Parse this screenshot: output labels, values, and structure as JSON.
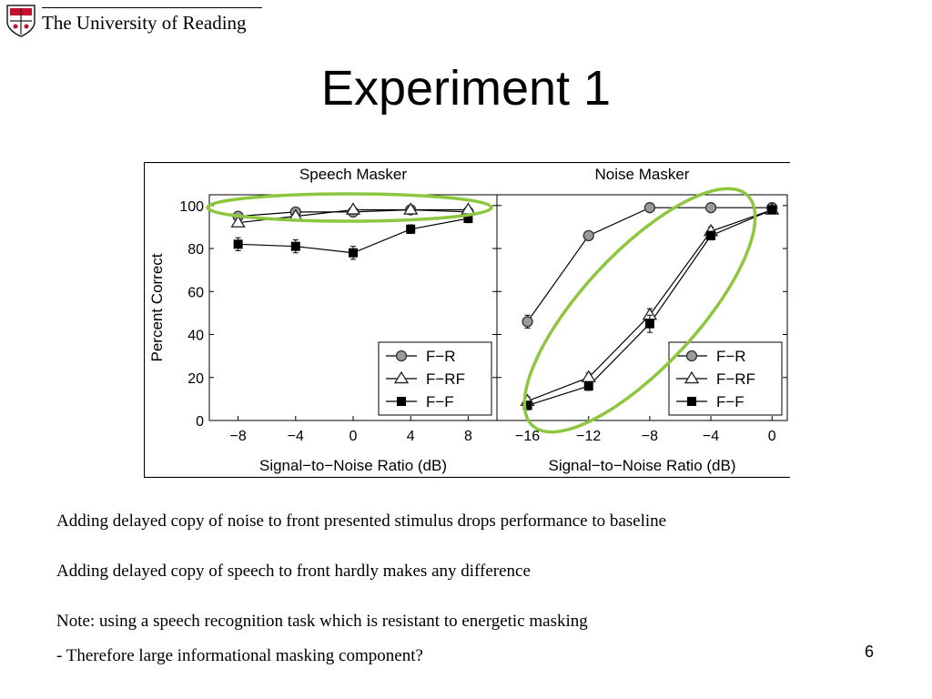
{
  "header": {
    "logo_text": "The University of Reading"
  },
  "slide": {
    "title": "Experiment 1",
    "page_number": "6",
    "bullets": [
      "Adding delayed copy of noise to front presented stimulus drops performance to baseline",
      "Adding delayed copy of speech to front hardly makes any difference",
      "Note: using a speech recognition task which is resistant to energetic masking",
      "- Therefore large informational masking component?"
    ]
  },
  "colors": {
    "highlight_ellipse": "#8dc63f",
    "circle_marker": "#9a9a9a",
    "logo_red": "#c8102e"
  },
  "chart_data": [
    {
      "type": "line",
      "title": "Speech Masker",
      "xlabel": "Signal−to−Noise Ratio (dB)",
      "ylabel": "Percent Correct",
      "x": [
        -8,
        -4,
        0,
        4,
        8
      ],
      "xticks": [
        "−8",
        "−4",
        "0",
        "4",
        "8"
      ],
      "yticks": [
        "0",
        "20",
        "40",
        "60",
        "80",
        "100"
      ],
      "xlim": [
        -10,
        10
      ],
      "ylim": [
        0,
        105
      ],
      "grid": false,
      "legend_position": "bottom-right",
      "series": [
        {
          "name": "F−R",
          "marker": "circle",
          "values": [
            95,
            97,
            97,
            98,
            97
          ],
          "err": [
            1,
            1,
            1,
            1,
            1
          ]
        },
        {
          "name": "F−RF",
          "marker": "triangle",
          "values": [
            92,
            95,
            98,
            98,
            98
          ],
          "err": [
            1,
            1,
            1,
            1,
            1
          ]
        },
        {
          "name": "F−F",
          "marker": "square",
          "values": [
            82,
            81,
            78,
            89,
            94
          ],
          "err": [
            3,
            3,
            3,
            2,
            2
          ]
        }
      ],
      "highlight": "ellipse"
    },
    {
      "type": "line",
      "title": "Noise Masker",
      "xlabel": "Signal−to−Noise Ratio (dB)",
      "x": [
        -16,
        -12,
        -8,
        -4,
        0
      ],
      "xticks": [
        "−16",
        "−12",
        "−8",
        "−4",
        "0"
      ],
      "xlim": [
        -18,
        1
      ],
      "ylim": [
        0,
        105
      ],
      "grid": false,
      "legend_position": "bottom-right",
      "series": [
        {
          "name": "F−R",
          "marker": "circle",
          "values": [
            46,
            86,
            99,
            99,
            99
          ],
          "err": [
            3,
            2,
            1,
            1,
            1
          ]
        },
        {
          "name": "F−RF",
          "marker": "triangle",
          "values": [
            9,
            20,
            49,
            88,
            98
          ],
          "err": [
            2,
            2,
            3,
            2,
            1
          ]
        },
        {
          "name": "F−F",
          "marker": "square",
          "values": [
            7,
            16,
            45,
            86,
            98
          ],
          "err": [
            2,
            2,
            4,
            2,
            1
          ]
        }
      ],
      "highlight": "ellipse"
    }
  ]
}
